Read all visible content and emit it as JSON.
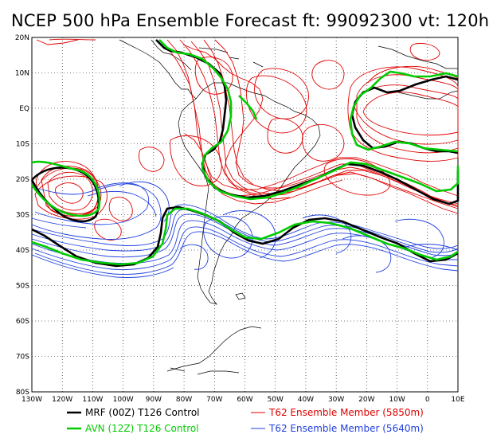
{
  "title": "NCEP 500 hPa Ensemble Forecast   ft: 99092300 vt: 120h",
  "lat_labels": [
    "20N",
    "10N",
    "EQ",
    "10S",
    "20S",
    "30S",
    "40S",
    "50S",
    "60S",
    "70S",
    "80S"
  ],
  "lon_labels": [
    "130W",
    "120W",
    "110W",
    "100W",
    "90W",
    "80W",
    "70W",
    "60W",
    "50W",
    "40W",
    "30W",
    "20W",
    "10W",
    "0",
    "10E"
  ],
  "legend": [
    {
      "label": "MRF (00Z) T126 Control",
      "color": "#000000",
      "width": 2.6
    },
    {
      "label": "AVN (12Z) T126 Control",
      "color": "#00cc00",
      "width": 2.6
    },
    {
      "label": "T62 Ensemble Member (5850m)",
      "color": "#e00000",
      "width": 1
    },
    {
      "label": "T62 Ensemble Member (5640m)",
      "color": "#2040e0",
      "width": 1
    }
  ],
  "colors": {
    "mrf": "#000000",
    "avn": "#00cc00",
    "ens_5850": "#e00000",
    "ens_5640": "#2040e0",
    "grid": "#000000"
  }
}
